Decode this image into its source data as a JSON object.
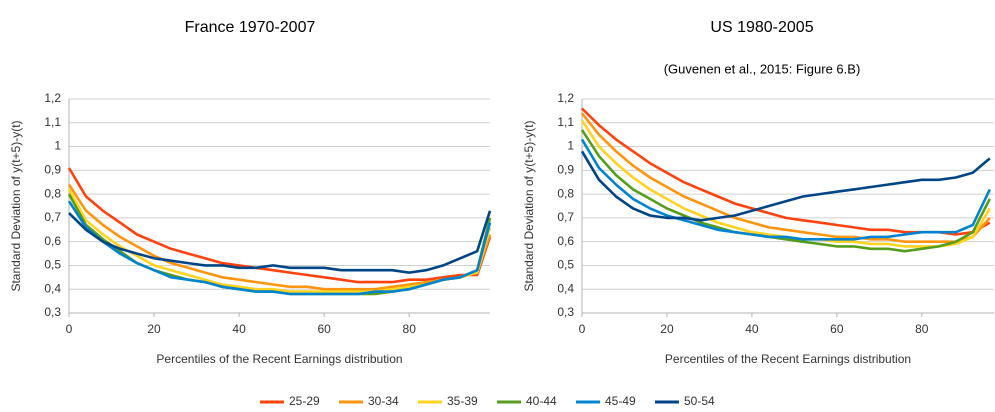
{
  "chart_data": [
    {
      "type": "line",
      "title": "France 1970-2007",
      "x_label": "Percentiles of the Recent Earnings distribution",
      "y_label": "Standard Deviation of y(t+5)-y(t)",
      "x": [
        0,
        4,
        8,
        12,
        16,
        20,
        24,
        28,
        32,
        36,
        40,
        44,
        48,
        52,
        56,
        60,
        64,
        68,
        72,
        76,
        80,
        84,
        88,
        92,
        96,
        99
      ],
      "xlim": [
        0,
        99
      ],
      "xticks": [
        0,
        20,
        40,
        60,
        80
      ],
      "ylim": [
        0.3,
        1.2
      ],
      "yticks": [
        {
          "value": 0.3,
          "label": "0,3"
        },
        {
          "value": 0.4,
          "label": "0,4"
        },
        {
          "value": 0.5,
          "label": "0,5"
        },
        {
          "value": 0.6,
          "label": "0,6"
        },
        {
          "value": 0.7,
          "label": "0,7"
        },
        {
          "value": 0.8,
          "label": "0,8"
        },
        {
          "value": 0.9,
          "label": "0,9"
        },
        {
          "value": 1,
          "label": "1"
        },
        {
          "value": 1.1,
          "label": "1,1"
        },
        {
          "value": 1.2,
          "label": "1,2"
        }
      ],
      "grid": true,
      "series": [
        {
          "name": "25-29",
          "color": "#ff420e",
          "values": [
            0.91,
            0.79,
            0.73,
            0.68,
            0.63,
            0.6,
            0.57,
            0.55,
            0.53,
            0.51,
            0.5,
            0.49,
            0.48,
            0.47,
            0.46,
            0.45,
            0.44,
            0.43,
            0.43,
            0.43,
            0.44,
            0.44,
            0.45,
            0.46,
            0.46,
            0.62
          ]
        },
        {
          "name": "30-34",
          "color": "#ff950e",
          "values": [
            0.84,
            0.73,
            0.67,
            0.62,
            0.58,
            0.54,
            0.51,
            0.49,
            0.47,
            0.45,
            0.44,
            0.43,
            0.42,
            0.41,
            0.41,
            0.4,
            0.4,
            0.4,
            0.4,
            0.41,
            0.42,
            0.43,
            0.44,
            0.45,
            0.47,
            0.63
          ]
        },
        {
          "name": "35-39",
          "color": "#ffd320",
          "values": [
            0.82,
            0.69,
            0.63,
            0.58,
            0.54,
            0.5,
            0.48,
            0.46,
            0.44,
            0.42,
            0.41,
            0.4,
            0.4,
            0.39,
            0.39,
            0.39,
            0.39,
            0.39,
            0.39,
            0.4,
            0.41,
            0.42,
            0.44,
            0.45,
            0.47,
            0.66
          ]
        },
        {
          "name": "40-44",
          "color": "#579d1c",
          "values": [
            0.8,
            0.67,
            0.61,
            0.56,
            0.51,
            0.48,
            0.46,
            0.44,
            0.43,
            0.41,
            0.4,
            0.39,
            0.39,
            0.38,
            0.38,
            0.38,
            0.38,
            0.38,
            0.38,
            0.39,
            0.4,
            0.42,
            0.44,
            0.45,
            0.48,
            0.7
          ]
        },
        {
          "name": "45-49",
          "color": "#0084d1",
          "values": [
            0.77,
            0.66,
            0.6,
            0.55,
            0.51,
            0.48,
            0.45,
            0.44,
            0.43,
            0.41,
            0.4,
            0.39,
            0.39,
            0.38,
            0.38,
            0.38,
            0.38,
            0.38,
            0.39,
            0.39,
            0.4,
            0.42,
            0.44,
            0.45,
            0.48,
            0.68
          ]
        },
        {
          "name": "50-54",
          "color": "#004586",
          "values": [
            0.72,
            0.65,
            0.6,
            0.57,
            0.55,
            0.53,
            0.52,
            0.51,
            0.5,
            0.5,
            0.49,
            0.49,
            0.5,
            0.49,
            0.49,
            0.49,
            0.48,
            0.48,
            0.48,
            0.48,
            0.47,
            0.48,
            0.5,
            0.53,
            0.56,
            0.73
          ]
        }
      ]
    },
    {
      "type": "line",
      "title": "US 1980-2005",
      "subtitle": "(Guvenen et al., 2015: Figure 6.B)",
      "x_label": "Percentiles of the Recent Earnings distribution",
      "y_label": "Standard Deviation of y(t+5)-y(t)",
      "x": [
        0,
        4,
        8,
        12,
        16,
        20,
        24,
        28,
        32,
        36,
        40,
        44,
        48,
        52,
        56,
        60,
        64,
        68,
        72,
        76,
        80,
        84,
        88,
        92,
        96
      ],
      "xlim": [
        0,
        97
      ],
      "xticks": [
        0,
        20,
        40,
        60,
        80
      ],
      "ylim": [
        0.3,
        1.2
      ],
      "yticks": [
        {
          "value": 0.3,
          "label": "0,3"
        },
        {
          "value": 0.4,
          "label": "0,4"
        },
        {
          "value": 0.5,
          "label": "0,5"
        },
        {
          "value": 0.6,
          "label": "0,6"
        },
        {
          "value": 0.7,
          "label": "0,7"
        },
        {
          "value": 0.8,
          "label": "0,8"
        },
        {
          "value": 0.9,
          "label": "0,9"
        },
        {
          "value": 1,
          "label": "1"
        },
        {
          "value": 1.1,
          "label": "1,1"
        },
        {
          "value": 1.2,
          "label": "1,2"
        }
      ],
      "grid": true,
      "series": [
        {
          "name": "25-29",
          "color": "#ff420e",
          "values": [
            1.16,
            1.09,
            1.03,
            0.98,
            0.93,
            0.89,
            0.85,
            0.82,
            0.79,
            0.76,
            0.74,
            0.72,
            0.7,
            0.69,
            0.68,
            0.67,
            0.66,
            0.65,
            0.65,
            0.64,
            0.64,
            0.64,
            0.63,
            0.64,
            0.68
          ]
        },
        {
          "name": "30-34",
          "color": "#ff950e",
          "values": [
            1.14,
            1.05,
            0.98,
            0.92,
            0.87,
            0.83,
            0.79,
            0.76,
            0.73,
            0.7,
            0.68,
            0.66,
            0.65,
            0.64,
            0.63,
            0.62,
            0.62,
            0.61,
            0.61,
            0.6,
            0.6,
            0.6,
            0.6,
            0.62,
            0.7
          ]
        },
        {
          "name": "35-39",
          "color": "#ffd320",
          "values": [
            1.11,
            1.0,
            0.93,
            0.87,
            0.82,
            0.78,
            0.74,
            0.71,
            0.68,
            0.66,
            0.64,
            0.63,
            0.62,
            0.61,
            0.61,
            0.6,
            0.6,
            0.59,
            0.59,
            0.58,
            0.58,
            0.58,
            0.59,
            0.62,
            0.74
          ]
        },
        {
          "name": "40-44",
          "color": "#579d1c",
          "values": [
            1.07,
            0.96,
            0.88,
            0.82,
            0.78,
            0.74,
            0.71,
            0.68,
            0.66,
            0.64,
            0.63,
            0.62,
            0.61,
            0.6,
            0.59,
            0.58,
            0.58,
            0.57,
            0.57,
            0.56,
            0.57,
            0.58,
            0.6,
            0.64,
            0.78
          ]
        },
        {
          "name": "45-49",
          "color": "#0084d1",
          "values": [
            1.03,
            0.91,
            0.84,
            0.78,
            0.74,
            0.71,
            0.69,
            0.67,
            0.65,
            0.64,
            0.63,
            0.62,
            0.62,
            0.61,
            0.61,
            0.61,
            0.61,
            0.62,
            0.62,
            0.63,
            0.64,
            0.64,
            0.64,
            0.67,
            0.82
          ]
        },
        {
          "name": "50-54",
          "color": "#004586",
          "values": [
            0.98,
            0.86,
            0.79,
            0.74,
            0.71,
            0.7,
            0.7,
            0.69,
            0.7,
            0.71,
            0.73,
            0.75,
            0.77,
            0.79,
            0.8,
            0.81,
            0.82,
            0.83,
            0.84,
            0.85,
            0.86,
            0.86,
            0.87,
            0.89,
            0.95
          ]
        }
      ]
    }
  ]
}
